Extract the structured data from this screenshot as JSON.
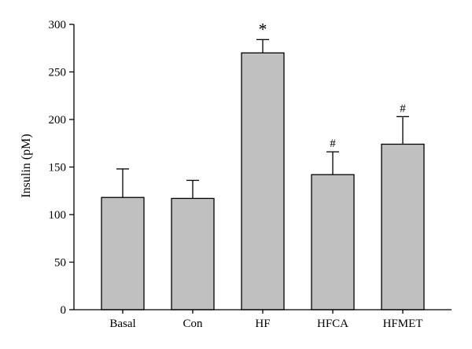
{
  "chart_data": {
    "type": "bar",
    "title": "",
    "xlabel": "",
    "ylabel": "Insulin (pM)",
    "ylim": [
      0,
      300
    ],
    "yticks": [
      0,
      50,
      100,
      150,
      200,
      250,
      300
    ],
    "grid": false,
    "legend": "none",
    "categories": [
      "Basal",
      "Con",
      "HF",
      "HFCA",
      "HFMET"
    ],
    "values": [
      118,
      117,
      270,
      142,
      174
    ],
    "errors": [
      30,
      19,
      14,
      24,
      29
    ],
    "annotations": [
      "",
      "",
      "*",
      "#",
      "#"
    ],
    "colors": {
      "bar_fill": "#c0c0c0",
      "bar_stroke": "#000000",
      "axis": "#000000"
    }
  }
}
